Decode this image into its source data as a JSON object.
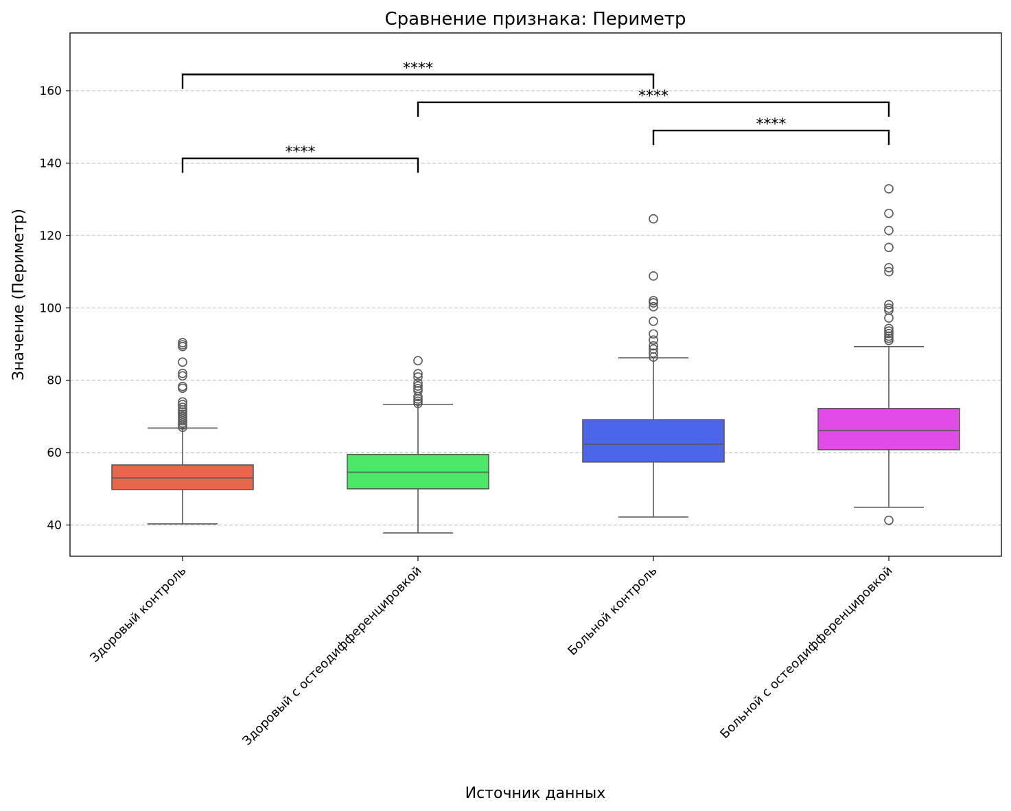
{
  "chart_data": {
    "type": "box",
    "title": "Сравнение признака: Периметр",
    "xlabel": "Источник данных",
    "ylabel": "Значение (Периметр)",
    "ylim": [
      31.5,
      175.5
    ],
    "yticks": [
      40,
      60,
      80,
      100,
      120,
      140,
      160
    ],
    "grid": "y-dashed",
    "categories": [
      "Здоровый контроль",
      "Здоровый с остеодифференцировкой",
      "Больной контроль",
      "Больной с остеодифференцировкой"
    ],
    "colors": [
      "#e8664c",
      "#4be867",
      "#4b66e8",
      "#e04be8"
    ],
    "boxes": [
      {
        "whislo": 40.3,
        "q1": 49.8,
        "med": 53.0,
        "q3": 56.6,
        "whishi": 66.8,
        "fliers": [
          67.0,
          67.6,
          68.2,
          68.8,
          69.4,
          70.0,
          70.6,
          71.2,
          71.8,
          72.5,
          73.3,
          74.0,
          77.8,
          78.3,
          81.2,
          81.9,
          85.0,
          89.3,
          89.8,
          90.4
        ]
      },
      {
        "whislo": 37.8,
        "q1": 50.0,
        "med": 54.6,
        "q3": 59.5,
        "whishi": 73.3,
        "fliers": [
          73.6,
          74.2,
          74.8,
          75.5,
          77.1,
          77.7,
          78.4,
          79.2,
          80.9,
          81.8,
          85.4
        ]
      },
      {
        "whislo": 42.2,
        "q1": 57.4,
        "med": 62.3,
        "q3": 69.1,
        "whishi": 86.2,
        "fliers": [
          86.4,
          87.5,
          88.6,
          89.5,
          91.1,
          92.8,
          96.3,
          100.3,
          101.4,
          102.0,
          108.8,
          124.6
        ]
      },
      {
        "whislo": 44.9,
        "q1": 60.8,
        "med": 66.1,
        "q3": 72.2,
        "whishi": 89.3,
        "fliers": [
          41.3,
          91.0,
          91.6,
          92.2,
          92.9,
          93.6,
          94.3,
          97.2,
          99.3,
          99.9,
          100.9,
          110.0,
          111.1,
          116.7,
          121.4,
          126.1,
          132.9
        ]
      }
    ],
    "annotations": [
      {
        "from": 0,
        "to": 1,
        "y": 141.3,
        "label": "****"
      },
      {
        "from": 2,
        "to": 3,
        "y": 149.0,
        "label": "****"
      },
      {
        "from": 1,
        "to": 3,
        "y": 156.8,
        "label": "****"
      },
      {
        "from": 0,
        "to": 2,
        "y": 164.5,
        "label": "****"
      }
    ]
  }
}
